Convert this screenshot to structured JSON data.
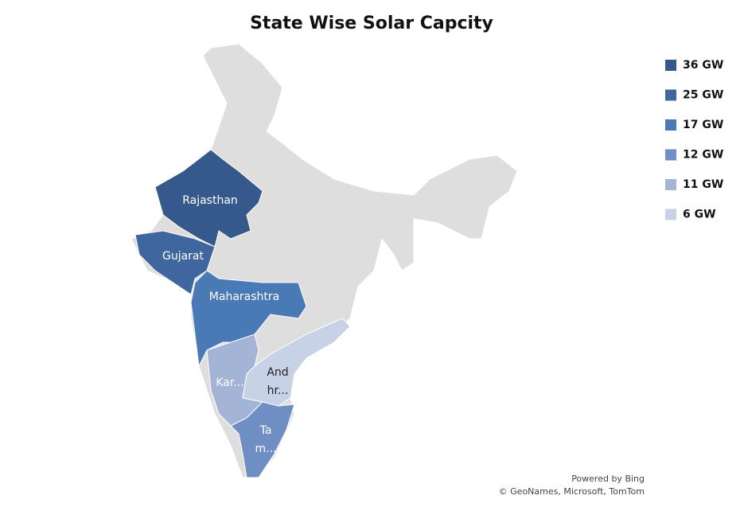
{
  "chart_data": {
    "type": "map",
    "title": "State Wise Solar Capcity",
    "regions": [
      {
        "label": [
          "Rajasthan"
        ],
        "value": 36,
        "value_label": "36 GW",
        "color": "#34598a"
      },
      {
        "label": [
          "Gujarat"
        ],
        "value": 25,
        "value_label": "25 GW",
        "color": "#3f669f"
      },
      {
        "label": [
          "Maharashtra"
        ],
        "value": 17,
        "value_label": "17 GW",
        "color": "#4a7ab6"
      },
      {
        "label": [
          "Ta",
          "m..."
        ],
        "value": 12,
        "value_label": "12 GW",
        "color": "#6f8fc4"
      },
      {
        "label": [
          "Kar..."
        ],
        "value": 11,
        "value_label": "11 GW",
        "color": "#a3b4d7"
      },
      {
        "label": [
          "And",
          "hr..."
        ],
        "value": 6,
        "value_label": "6 GW",
        "color": "#c8d2e7"
      }
    ],
    "attribution": [
      "Powered by Bing",
      "© GeoNames, Microsoft, TomTom"
    ]
  }
}
